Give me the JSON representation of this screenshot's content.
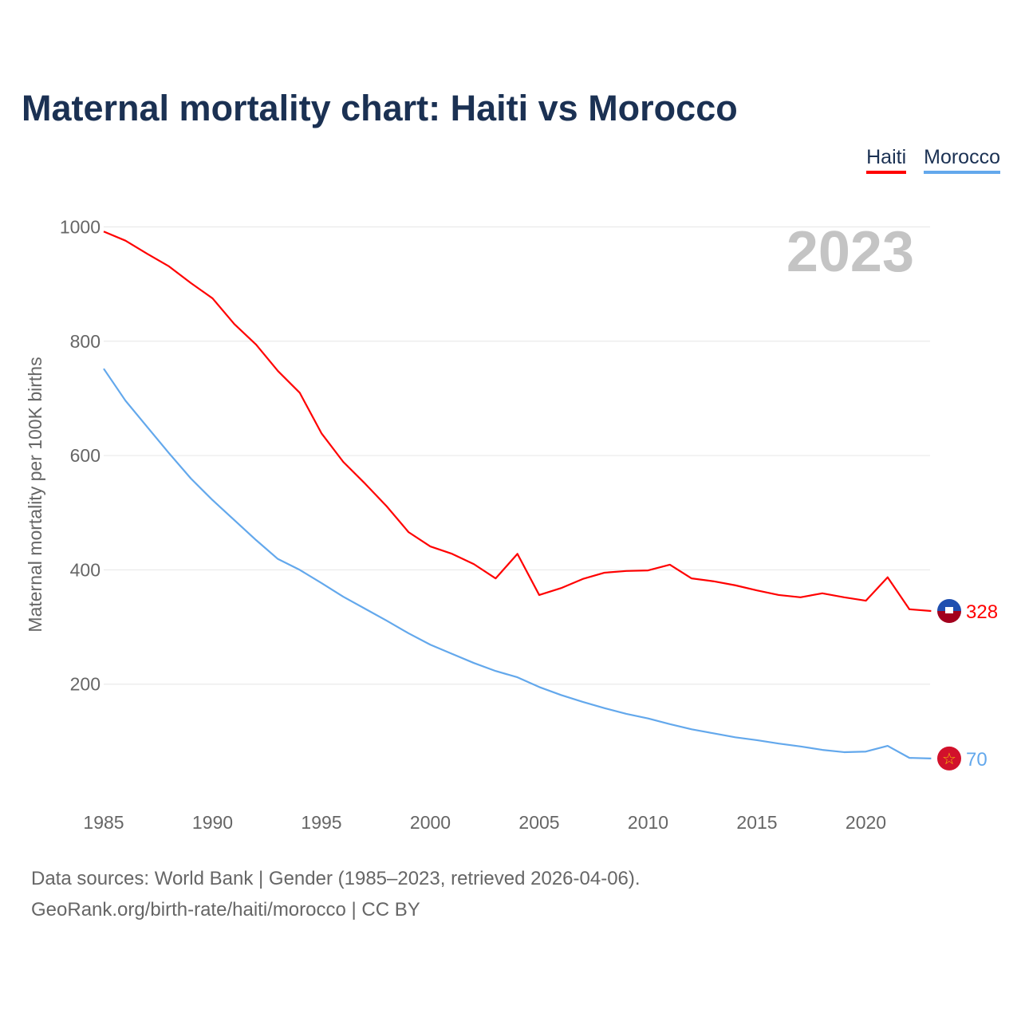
{
  "title": "Maternal mortality chart: Haiti vs Morocco",
  "legend": [
    {
      "label": "Haiti",
      "color": "#ff0000"
    },
    {
      "label": "Morocco",
      "color": "#63a8ec"
    }
  ],
  "footer": {
    "line1": "Data sources: World Bank | Gender (1985–2023, retrieved 2026-04-06).",
    "line2": "GeoRank.org/birth-rate/haiti/morocco | CC BY"
  },
  "chart_data": {
    "type": "line",
    "title": "Maternal mortality chart: Haiti vs Morocco",
    "ylabel": "Maternal mortality per 100K births",
    "xlabel": "",
    "year_label": "2023",
    "ylim": [
      0,
      1000
    ],
    "yticks": [
      200,
      400,
      600,
      800,
      1000
    ],
    "xticks": [
      1985,
      1990,
      1995,
      2000,
      2005,
      2010,
      2015,
      2020
    ],
    "x": [
      1985,
      1986,
      1987,
      1988,
      1989,
      1990,
      1991,
      1992,
      1993,
      1994,
      1995,
      1996,
      1997,
      1998,
      1999,
      2000,
      2001,
      2002,
      2003,
      2004,
      2005,
      2006,
      2007,
      2008,
      2009,
      2010,
      2011,
      2012,
      2013,
      2014,
      2015,
      2016,
      2017,
      2018,
      2019,
      2020,
      2021,
      2022,
      2023
    ],
    "series": [
      {
        "name": "Haiti",
        "color": "#ff0000",
        "end_label": "328",
        "flag": "haiti-flag",
        "values": [
          992,
          976,
          953,
          931,
          902,
          875,
          830,
          794,
          748,
          710,
          639,
          589,
          551,
          511,
          466,
          441,
          428,
          410,
          385,
          428,
          356,
          368,
          384,
          395,
          398,
          399,
          409,
          385,
          380,
          373,
          364,
          356,
          352,
          359,
          352,
          346,
          387,
          331,
          328
        ]
      },
      {
        "name": "Morocco",
        "color": "#63a8ec",
        "end_label": "70",
        "flag": "morocco-flag",
        "values": [
          752,
          696,
          650,
          604,
          560,
          522,
          487,
          452,
          419,
          400,
          377,
          353,
          332,
          311,
          289,
          269,
          253,
          237,
          223,
          212,
          195,
          181,
          169,
          158,
          148,
          140,
          130,
          121,
          114,
          107,
          102,
          96,
          91,
          85,
          81,
          82,
          92,
          71,
          70
        ]
      }
    ]
  }
}
